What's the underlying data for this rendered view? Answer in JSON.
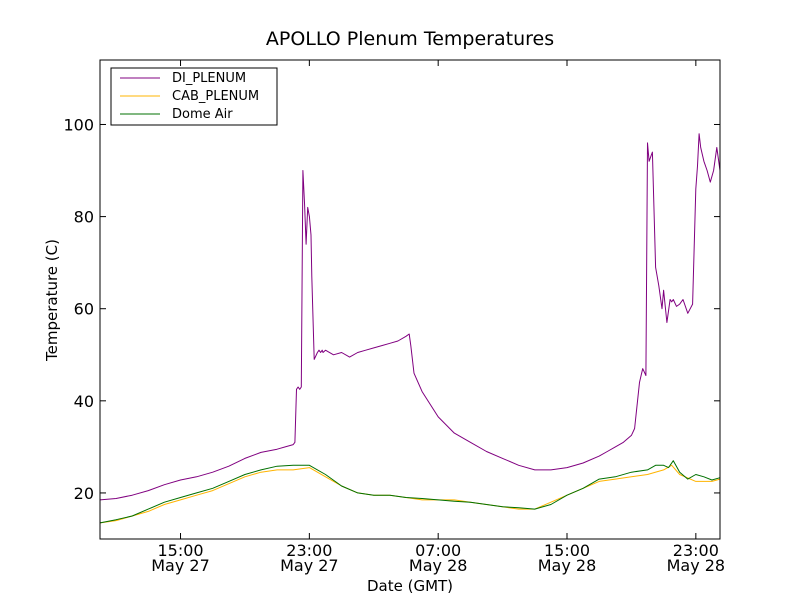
{
  "chart_data": {
    "type": "line",
    "title": "APOLLO Plenum Temperatures",
    "xlabel": "Date (GMT)",
    "ylabel": "Temperature (C)",
    "x_unit": "hours since May 27 10:00 GMT",
    "xlim": [
      0,
      38.5
    ],
    "ylim": [
      10,
      114
    ],
    "grid": false,
    "legend_position": "upper-left",
    "yticks": [
      20,
      40,
      60,
      80,
      100
    ],
    "xticks": [
      {
        "x": 5,
        "time": "15:00",
        "date": "May 27"
      },
      {
        "x": 13,
        "time": "23:00",
        "date": "May 27"
      },
      {
        "x": 21,
        "time": "07:00",
        "date": "May 28"
      },
      {
        "x": 29,
        "time": "15:00",
        "date": "May 28"
      },
      {
        "x": 37,
        "time": "23:00",
        "date": "May 28"
      }
    ],
    "series": [
      {
        "name": "DI_PLENUM",
        "color": "#800080",
        "x": [
          0,
          1,
          2,
          3,
          4,
          5,
          6,
          7,
          8,
          9,
          10,
          11,
          11.5,
          12,
          12.1,
          12.2,
          12.3,
          12.4,
          12.5,
          12.6,
          12.7,
          12.8,
          12.9,
          13.0,
          13.1,
          13.15,
          13.3,
          13.5,
          13.6,
          13.7,
          13.8,
          13.85,
          14.0,
          14.5,
          15,
          15.5,
          16,
          16.5,
          17,
          17.5,
          18,
          18.5,
          19,
          19.2,
          19.3,
          19.5,
          20,
          21,
          22,
          23,
          24,
          25,
          26,
          27,
          28,
          29,
          30,
          31,
          31.5,
          32,
          32.5,
          33,
          33.2,
          33.5,
          33.7,
          33.9,
          34.0,
          34.1,
          34.3,
          34.5,
          34.7,
          34.9,
          35.0,
          35.2,
          35.4,
          35.5,
          35.6,
          35.8,
          36.0,
          36.2,
          36.5,
          36.8,
          37.0,
          37.1,
          37.2,
          37.3,
          37.5,
          37.7,
          37.9,
          38.1,
          38.3,
          38.5
        ],
        "y": [
          18.5,
          18.8,
          19.5,
          20.5,
          21.8,
          22.8,
          23.5,
          24.5,
          25.8,
          27.5,
          28.8,
          29.5,
          30,
          30.5,
          31,
          42.5,
          43,
          42.5,
          43,
          90,
          83,
          74,
          82,
          80,
          76,
          67,
          49,
          50.5,
          51,
          50.5,
          51,
          50.5,
          51,
          50,
          50.5,
          49.5,
          50.5,
          51,
          51.5,
          52,
          52.5,
          53,
          54,
          54.5,
          52,
          46,
          42,
          36.5,
          33,
          31,
          29,
          27.5,
          26,
          25,
          25,
          25.5,
          26.5,
          28,
          29,
          30,
          31,
          32.5,
          34,
          44,
          47,
          45.5,
          96,
          92,
          94,
          69,
          65,
          60,
          64,
          57,
          62,
          61.5,
          62,
          60.5,
          61,
          62,
          59,
          61,
          86,
          91,
          98,
          95,
          92,
          90,
          87.5,
          90,
          95,
          90
        ]
      },
      {
        "name": "CAB_PLENUM",
        "color": "#ffb400",
        "x": [
          0,
          1,
          2,
          3,
          4,
          5,
          6,
          7,
          8,
          9,
          10,
          11,
          12,
          13,
          14,
          15,
          16,
          17,
          18,
          19,
          20,
          21,
          22,
          23,
          24,
          25,
          26,
          27,
          28,
          29,
          30,
          31,
          32,
          33,
          34,
          35,
          35.5,
          36,
          37,
          38,
          38.5
        ],
        "y": [
          13.5,
          14,
          15,
          16,
          17.5,
          18.5,
          19.5,
          20.5,
          22,
          23.5,
          24.5,
          25,
          25,
          25.5,
          23.5,
          21.5,
          20,
          19.5,
          19.5,
          19,
          18.5,
          18.5,
          18.5,
          18,
          17.5,
          17,
          16.5,
          16.5,
          18,
          19.5,
          21,
          22.5,
          23,
          23.5,
          24,
          25,
          26,
          24,
          22.5,
          22.5,
          23
        ]
      },
      {
        "name": "Dome Air",
        "color": "#007000",
        "x": [
          0,
          1,
          2,
          3,
          4,
          5,
          6,
          7,
          8,
          9,
          10,
          11,
          12,
          13,
          14,
          15,
          16,
          17,
          18,
          19,
          20,
          21,
          22,
          23,
          24,
          25,
          26,
          27,
          28,
          29,
          30,
          31,
          32,
          33,
          34,
          34.5,
          35,
          35.3,
          35.6,
          36,
          36.5,
          37,
          37.5,
          38,
          38.5
        ],
        "y": [
          13.5,
          14.2,
          15,
          16.5,
          18,
          19,
          20,
          21,
          22.5,
          24,
          25,
          25.8,
          26,
          26,
          24,
          21.5,
          20,
          19.5,
          19.5,
          19,
          18.8,
          18.5,
          18.2,
          18,
          17.5,
          17,
          16.8,
          16.5,
          17.5,
          19.5,
          21,
          23,
          23.5,
          24.5,
          25,
          26,
          26,
          25.5,
          27,
          24.5,
          23,
          24,
          23.5,
          22.8,
          23.3
        ]
      }
    ]
  }
}
